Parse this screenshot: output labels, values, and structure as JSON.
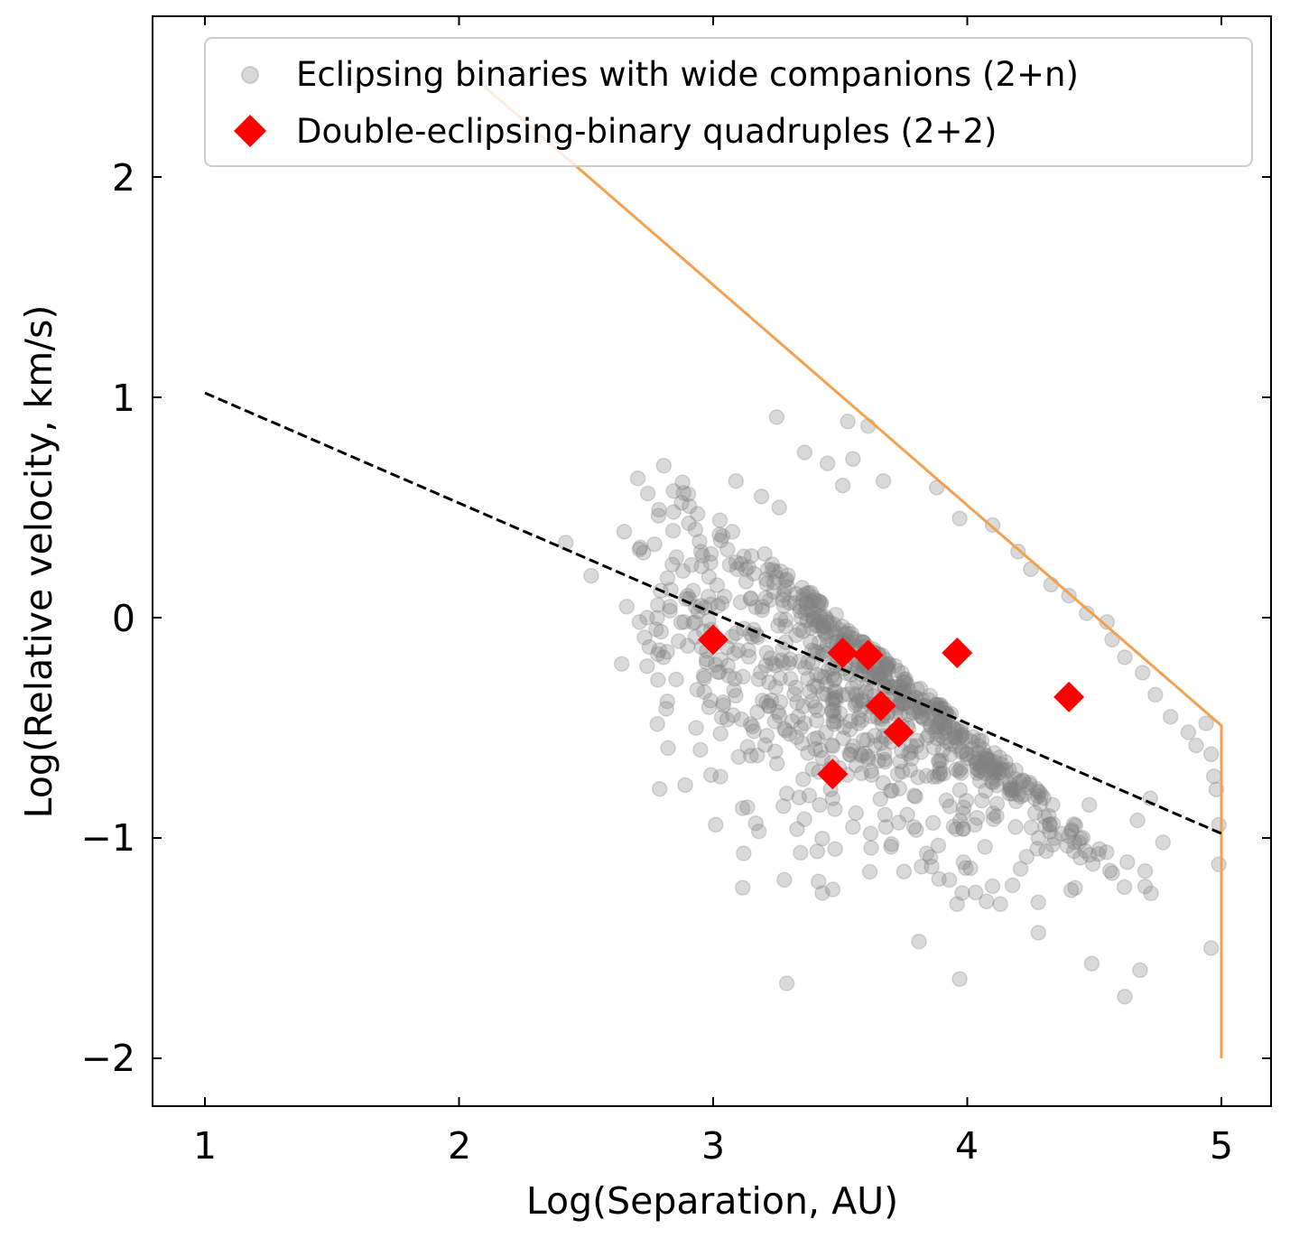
{
  "chart_data": {
    "type": "scatter",
    "xlabel": "Log(Separation, AU)",
    "ylabel": "Log(Relative velocity, km/s)",
    "xlim": [
      0.8,
      5.2
    ],
    "ylim": [
      -2.25,
      2.7
    ],
    "x_ticks": [
      1,
      2,
      3,
      4,
      5
    ],
    "y_ticks": [
      -2,
      -1,
      0,
      1,
      2
    ],
    "x_tick_labels": [
      "1",
      "2",
      "3",
      "4",
      "5"
    ],
    "y_tick_labels": [
      "−2",
      "−1",
      "0",
      "1",
      "2"
    ],
    "legend_position": "top-right",
    "colors": {
      "gray_points": "#808080",
      "red_points": "#ff0000",
      "orange_line": "#f5a04e",
      "dashed_line": "#000000"
    },
    "series": [
      {
        "name": "Eclipsing binaries with wide companions (2+n)",
        "kind": "scatter",
        "marker": "circle",
        "alpha": 0.3,
        "count": 900,
        "x_mean": 3.55,
        "x_std": 0.42,
        "y_at_x_intercept": 1.5,
        "y_at_x_slope": -0.5,
        "y_std": 0.35,
        "points": [
          [
            2.42,
            0.34
          ],
          [
            2.52,
            0.19
          ],
          [
            2.65,
            0.39
          ],
          [
            2.71,
            0.31
          ],
          [
            2.66,
            0.05
          ],
          [
            2.71,
            -0.02
          ],
          [
            2.73,
            -0.09
          ],
          [
            2.74,
            -0.22
          ],
          [
            2.64,
            -0.21
          ],
          [
            2.74,
            0.0
          ],
          [
            2.83,
            0.05
          ],
          [
            2.93,
            0.4
          ],
          [
            2.99,
            0.25
          ],
          [
            3.03,
            0.35
          ],
          [
            3.09,
            0.62
          ],
          [
            3.19,
            0.55
          ],
          [
            3.26,
            0.5
          ],
          [
            3.36,
            0.75
          ],
          [
            3.25,
            0.91
          ],
          [
            3.45,
            0.7
          ],
          [
            3.53,
            0.89
          ],
          [
            3.61,
            0.87
          ],
          [
            3.55,
            0.72
          ],
          [
            3.51,
            0.6
          ],
          [
            3.67,
            0.62
          ],
          [
            3.88,
            0.59
          ],
          [
            3.97,
            0.45
          ],
          [
            4.1,
            0.42
          ],
          [
            4.2,
            0.3
          ],
          [
            4.25,
            0.22
          ],
          [
            4.33,
            0.15
          ],
          [
            4.4,
            0.1
          ],
          [
            4.47,
            0.02
          ],
          [
            4.55,
            -0.02
          ],
          [
            4.57,
            -0.1
          ],
          [
            4.62,
            -0.18
          ],
          [
            4.69,
            -0.25
          ],
          [
            4.74,
            -0.35
          ],
          [
            4.8,
            -0.45
          ],
          [
            4.87,
            -0.52
          ],
          [
            4.9,
            -0.58
          ],
          [
            4.94,
            -0.48
          ],
          [
            4.96,
            -0.62
          ],
          [
            4.97,
            -0.72
          ],
          [
            4.98,
            -0.78
          ],
          [
            4.99,
            -0.94
          ],
          [
            4.99,
            -1.12
          ],
          [
            4.96,
            -1.5
          ],
          [
            4.62,
            -1.72
          ],
          [
            4.68,
            -1.6
          ],
          [
            4.49,
            -1.57
          ],
          [
            4.28,
            -1.43
          ],
          [
            4.13,
            -1.3
          ],
          [
            3.97,
            -1.64
          ],
          [
            3.81,
            -1.47
          ],
          [
            3.29,
            -1.66
          ],
          [
            3.43,
            -1.25
          ],
          [
            3.28,
            -1.19
          ],
          [
            3.48,
            -1.05
          ],
          [
            3.7,
            -1.04
          ],
          [
            3.84,
            -1.07
          ],
          [
            3.96,
            -1.3
          ],
          [
            3.98,
            -1.25
          ],
          [
            4.07,
            -1.04
          ],
          [
            4.21,
            -1.14
          ],
          [
            4.52,
            -1.05
          ],
          [
            4.57,
            -1.16
          ],
          [
            4.63,
            -1.11
          ],
          [
            4.7,
            -1.15
          ],
          [
            4.7,
            -1.22
          ],
          [
            4.77,
            -1.02
          ],
          [
            2.82,
            -0.38
          ],
          [
            2.89,
            -0.76
          ],
          [
            2.95,
            -0.6
          ],
          [
            3.01,
            -0.94
          ],
          [
            3.12,
            -1.07
          ],
          [
            3.18,
            -0.97
          ],
          [
            3.33,
            -0.96
          ],
          [
            3.42,
            -0.85
          ],
          [
            3.47,
            -0.82
          ],
          [
            3.55,
            -0.95
          ],
          [
            3.62,
            -0.98
          ],
          [
            3.68,
            -0.95
          ],
          [
            3.73,
            -0.93
          ],
          [
            3.79,
            -0.95
          ],
          [
            3.82,
            -1.13
          ],
          [
            3.86,
            -1.13
          ],
          [
            4.03,
            -0.94
          ],
          [
            4.19,
            -0.95
          ],
          [
            4.28,
            -1.0
          ],
          [
            4.41,
            -0.97
          ],
          [
            4.42,
            -1.06
          ],
          [
            4.48,
            -0.85
          ],
          [
            4.67,
            -0.92
          ],
          [
            4.72,
            -0.82
          ]
        ]
      },
      {
        "name": "Double-eclipsing-binary quadruples (2+2)",
        "kind": "scatter",
        "marker": "diamond",
        "points": [
          [
            3.0,
            -0.1
          ],
          [
            3.51,
            -0.16
          ],
          [
            3.61,
            -0.17
          ],
          [
            3.96,
            -0.16
          ],
          [
            3.66,
            -0.4
          ],
          [
            3.73,
            -0.52
          ],
          [
            4.4,
            -0.36
          ],
          [
            3.47,
            -0.71
          ]
        ]
      },
      {
        "name": "Orange bound",
        "kind": "line",
        "style": "solid",
        "points": [
          [
            2.02,
            2.49
          ],
          [
            5.0,
            -0.49
          ],
          [
            5.0,
            -2.0
          ]
        ]
      },
      {
        "name": "Dashed trend",
        "kind": "line",
        "style": "dashed",
        "points": [
          [
            1.0,
            1.02
          ],
          [
            5.0,
            -0.98
          ]
        ]
      }
    ]
  }
}
